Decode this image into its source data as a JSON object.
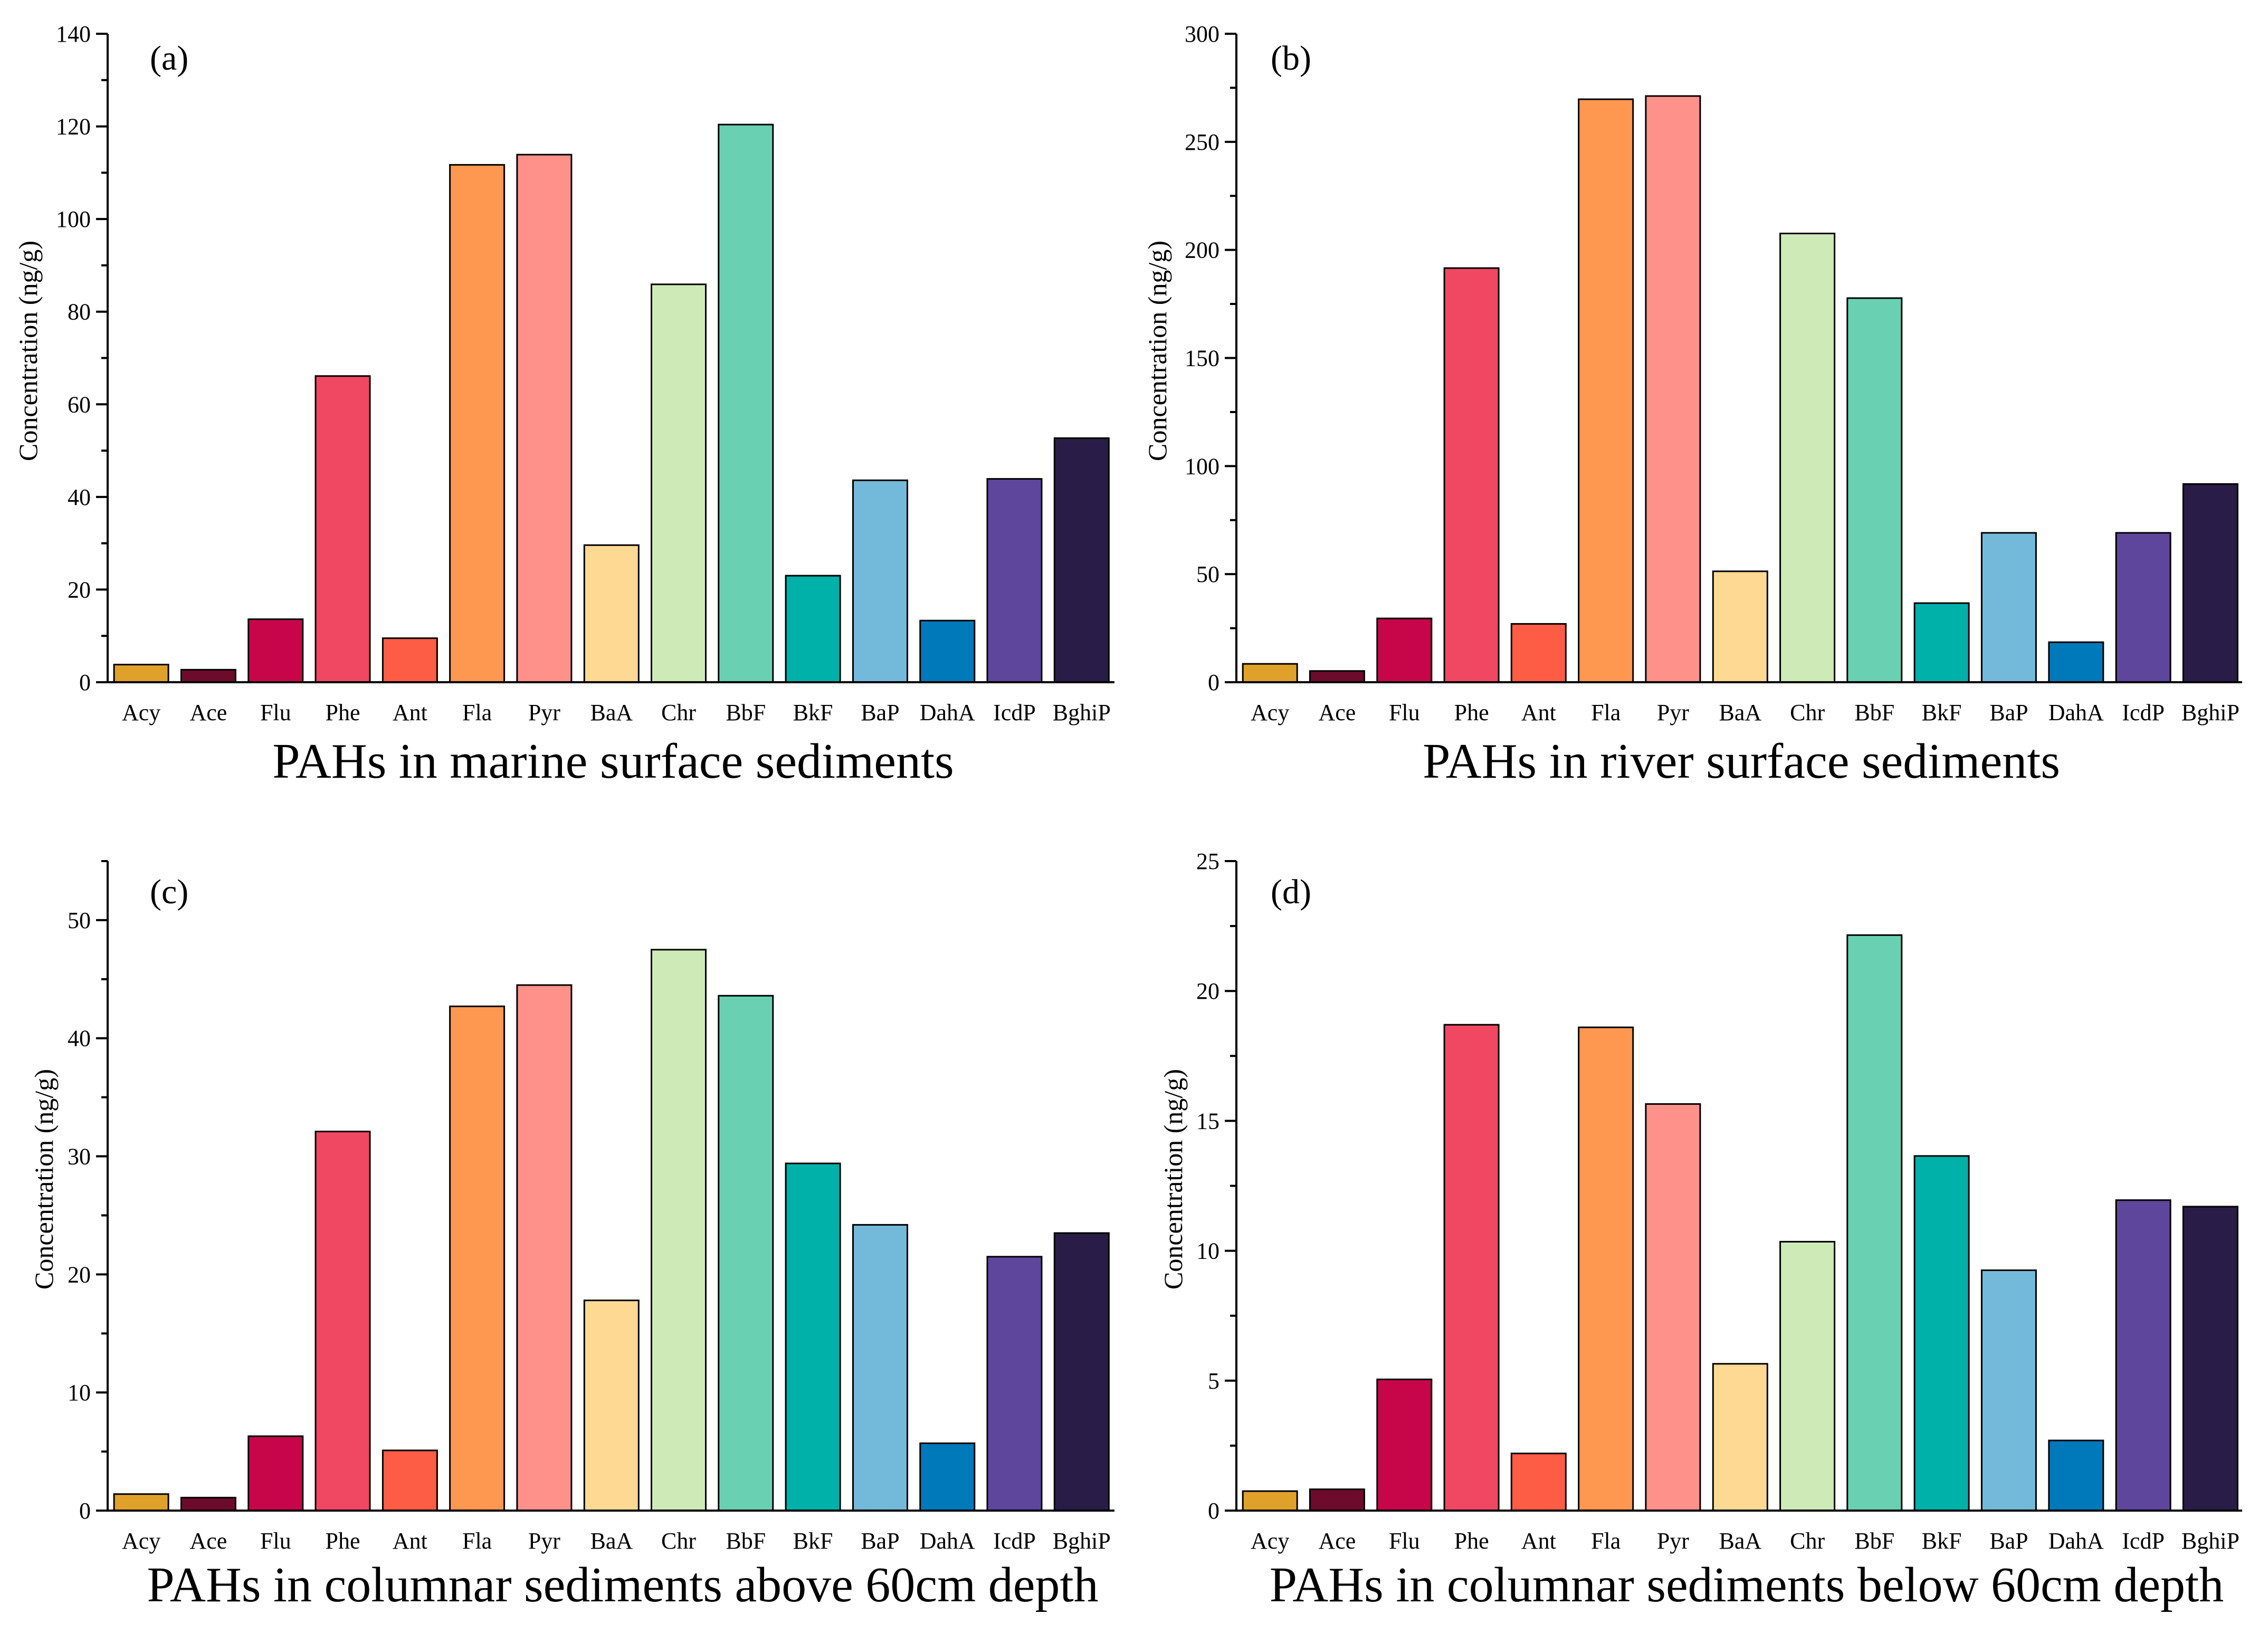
{
  "chart_data": [
    {
      "type": "bar",
      "panel_label": "(a)",
      "title": "PAHs in marine surface sediments",
      "xlabel": "",
      "ylabel": "Concentration (ng/g)",
      "ylim": [
        0,
        140
      ],
      "yticks": [
        0,
        20,
        40,
        60,
        80,
        100,
        120,
        140
      ],
      "grid": false,
      "categories": [
        "Acy",
        "Ace",
        "Flu",
        "Phe",
        "Ant",
        "Fla",
        "Pyr",
        "BaA",
        "Chr",
        "BbF",
        "BkF",
        "BaP",
        "DahA",
        "IcdP",
        "BghiP"
      ],
      "values": [
        3.8,
        2.7,
        13.6,
        66.1,
        9.5,
        111.7,
        113.9,
        29.6,
        85.9,
        120.4,
        23.0,
        43.6,
        13.3,
        43.9,
        52.7
      ]
    },
    {
      "type": "bar",
      "panel_label": "(b)",
      "title": "PAHs in river surface sediments",
      "xlabel": "",
      "ylabel": "Concentration (ng/g)",
      "ylim": [
        0,
        300
      ],
      "yticks": [
        0,
        50,
        100,
        150,
        200,
        250,
        300
      ],
      "grid": false,
      "categories": [
        "Acy",
        "Ace",
        "Flu",
        "Phe",
        "Ant",
        "Fla",
        "Pyr",
        "BaA",
        "Chr",
        "BbF",
        "BkF",
        "BaP",
        "DahA",
        "IcdP",
        "BghiP"
      ],
      "values": [
        8.5,
        5.2,
        29.5,
        191.6,
        27.0,
        269.7,
        271.2,
        51.3,
        207.6,
        177.7,
        36.6,
        69.1,
        18.5,
        69.1,
        91.7
      ]
    },
    {
      "type": "bar",
      "panel_label": "(c)",
      "title": "PAHs in columnar sediments above 60cm depth",
      "xlabel": "",
      "ylabel": "Concentration (ng/g)",
      "ylim": [
        0,
        55
      ],
      "yticks": [
        0,
        10,
        20,
        30,
        40,
        50
      ],
      "grid": false,
      "categories": [
        "Acy",
        "Ace",
        "Flu",
        "Phe",
        "Ant",
        "Fla",
        "Pyr",
        "BaA",
        "Chr",
        "BbF",
        "BkF",
        "BaP",
        "DahA",
        "IcdP",
        "BghiP"
      ],
      "values": [
        1.4,
        1.1,
        6.3,
        32.1,
        5.1,
        42.7,
        44.5,
        17.8,
        47.5,
        43.6,
        29.4,
        24.2,
        5.7,
        21.5,
        23.5
      ]
    },
    {
      "type": "bar",
      "panel_label": "(d)",
      "title": "PAHs in columnar sediments below 60cm depth",
      "xlabel": "",
      "ylabel": "Concentration (ng/g)",
      "ylim": [
        0,
        25
      ],
      "yticks": [
        0,
        5,
        10,
        15,
        20,
        25
      ],
      "grid": false,
      "categories": [
        "Acy",
        "Ace",
        "Flu",
        "Phe",
        "Ant",
        "Fla",
        "Pyr",
        "BaA",
        "Chr",
        "BbF",
        "BkF",
        "BaP",
        "DahA",
        "IcdP",
        "BghiP"
      ],
      "values": [
        0.75,
        0.82,
        5.05,
        18.7,
        2.2,
        18.6,
        15.65,
        5.65,
        10.35,
        22.15,
        13.65,
        9.25,
        2.7,
        11.95,
        11.7
      ]
    }
  ],
  "bar_colors": [
    "#e0a12b",
    "#6c0b2b",
    "#c7064a",
    "#f04762",
    "#fd5c45",
    "#fe974f",
    "#fe918a",
    "#fed993",
    "#ceebb7",
    "#69d1b1",
    "#00b1aa",
    "#73b9da",
    "#0079bb",
    "#5e469c",
    "#291d48"
  ]
}
